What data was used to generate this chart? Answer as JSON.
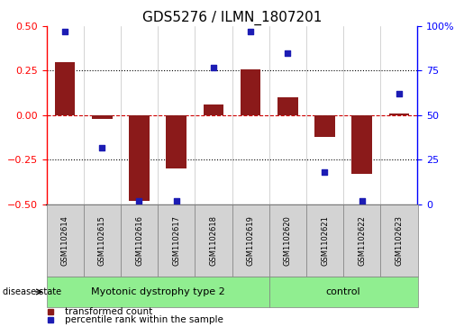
{
  "title": "GDS5276 / ILMN_1807201",
  "samples": [
    "GSM1102614",
    "GSM1102615",
    "GSM1102616",
    "GSM1102617",
    "GSM1102618",
    "GSM1102619",
    "GSM1102620",
    "GSM1102621",
    "GSM1102622",
    "GSM1102623"
  ],
  "transformed_count": [
    0.3,
    -0.02,
    -0.48,
    -0.3,
    0.06,
    0.26,
    0.1,
    -0.12,
    -0.33,
    0.01
  ],
  "percentile_rank": [
    97,
    32,
    2,
    2,
    77,
    97,
    85,
    18,
    2,
    62
  ],
  "disease_groups": [
    {
      "label": "Myotonic dystrophy type 2",
      "start": 0,
      "end": 6,
      "color": "#90EE90"
    },
    {
      "label": "control",
      "start": 6,
      "end": 10,
      "color": "#90EE90"
    }
  ],
  "bar_color": "#8B1A1A",
  "dot_color": "#1C1CB4",
  "ylim_left": [
    -0.5,
    0.5
  ],
  "ylim_right": [
    0,
    100
  ],
  "yticks_left": [
    -0.5,
    -0.25,
    0.0,
    0.25,
    0.5
  ],
  "yticks_right": [
    0,
    25,
    50,
    75,
    100
  ],
  "hlines_dotted": [
    0.25,
    -0.25
  ],
  "hline_zero_color": "#CC0000",
  "disease_state_label": "disease state",
  "legend_items": [
    {
      "label": "transformed count",
      "color": "#8B1A1A"
    },
    {
      "label": "percentile rank within the sample",
      "color": "#1C1CB4"
    }
  ],
  "bar_width": 0.55,
  "title_fontsize": 11,
  "tick_fontsize": 8,
  "label_fontsize": 7,
  "sample_fontsize": 6,
  "disease_fontsize": 8
}
